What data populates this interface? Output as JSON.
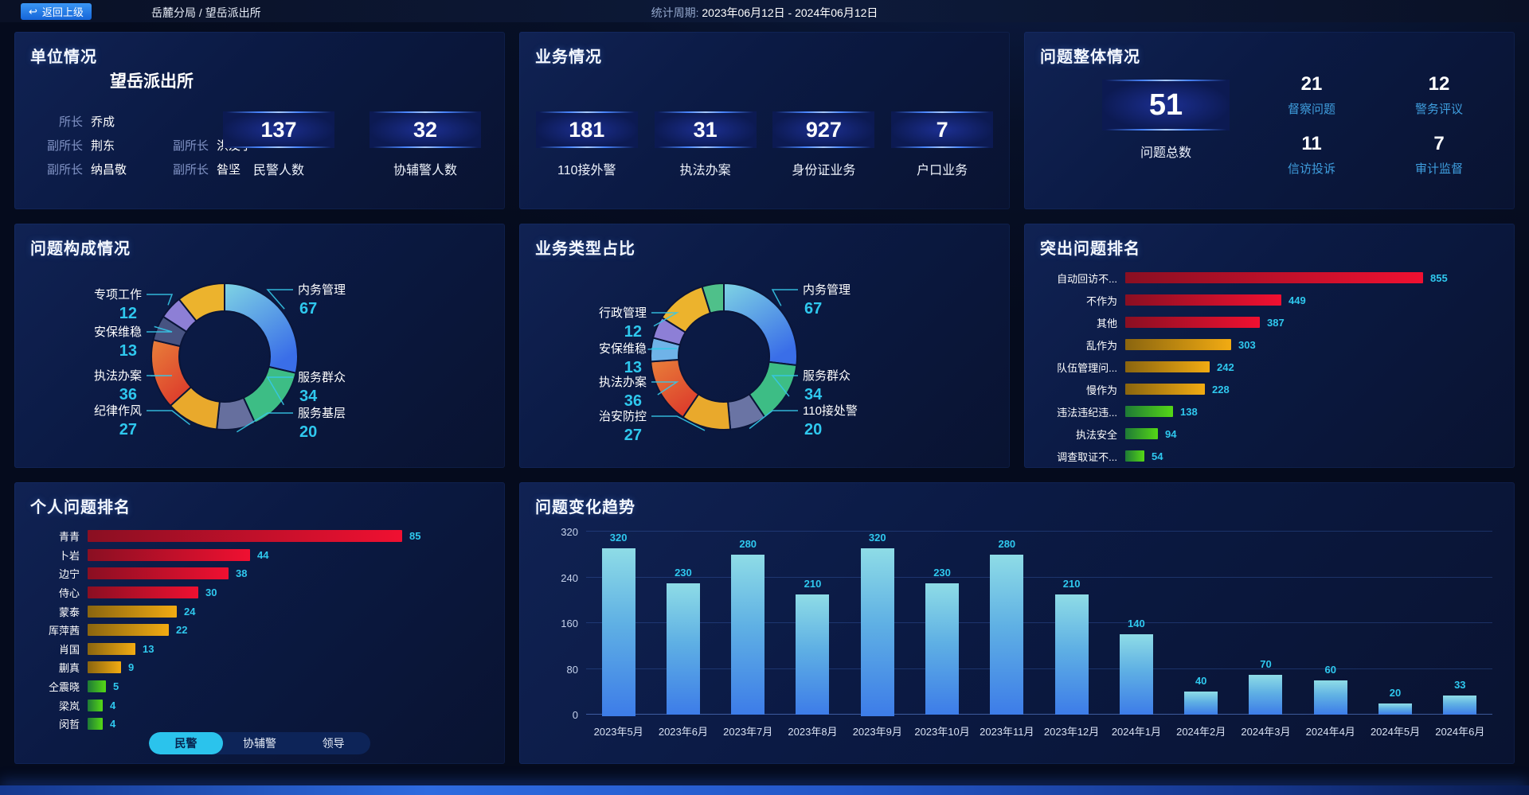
{
  "topbar": {
    "back_button": "返回上级",
    "breadcrumb": "岳麓分局 / 望岳派出所",
    "period_label": "统计周期: ",
    "period_value": "2023年06月12日 - 2024年06月12日"
  },
  "unit_panel": {
    "title": "单位情况",
    "station_name": "望岳派出所",
    "leader_rows": [
      [
        {
          "role": "所长",
          "name": "乔成"
        }
      ],
      [
        {
          "role": "副所长",
          "name": "荆东"
        },
        {
          "role": "副所长",
          "name": "洪友宁"
        }
      ],
      [
        {
          "role": "副所长",
          "name": "纳昌敬"
        },
        {
          "role": "副所长",
          "name": "昝坚"
        }
      ]
    ],
    "stats": [
      {
        "value": "137",
        "label": "民警人数"
      },
      {
        "value": "32",
        "label": "协辅警人数"
      }
    ]
  },
  "business_panel": {
    "title": "业务情况",
    "stats": [
      {
        "value": "181",
        "label": "110接外警"
      },
      {
        "value": "31",
        "label": "执法办案"
      },
      {
        "value": "927",
        "label": "身份证业务"
      },
      {
        "value": "7",
        "label": "户口业务"
      }
    ]
  },
  "problem_panel": {
    "title": "问题整体情况",
    "total": {
      "value": "51",
      "label": "问题总数"
    },
    "stats": [
      {
        "value": "21",
        "label": "督察问题"
      },
      {
        "value": "12",
        "label": "警务评议"
      },
      {
        "value": "11",
        "label": "信访投诉"
      },
      {
        "value": "7",
        "label": "审计监督"
      }
    ]
  },
  "personal_tabs": [
    {
      "label": "民警",
      "active": true
    },
    {
      "label": "协辅警",
      "active": false
    },
    {
      "label": "领导",
      "active": false
    }
  ],
  "colors": {
    "value_text": "#2fc8ee",
    "stat_label_blue": "#3f9ede",
    "leader_line": "#35c8e8",
    "bar_red": [
      "#8a0f22",
      "#f01031"
    ],
    "bar_yellow": [
      "#8a650f",
      "#f2ab12"
    ],
    "bar_green": [
      "#1e7a36",
      "#55d816"
    ],
    "trend_bar": [
      "#8edce6",
      "#5fb0e4",
      "#3d7ce8"
    ],
    "back_button_blue": "#2186f0",
    "tab_active": "#2bc3ec"
  },
  "chart_data": [
    {
      "id": "problem_composition",
      "type": "donut",
      "title": "问题构成情况",
      "segments": [
        {
          "label": "内务管理",
          "value": 67,
          "color": "#7fd4e4",
          "color2": "#3a6ee8"
        },
        {
          "label": "服务群众",
          "value": 34,
          "color": "#3dbd85"
        },
        {
          "label": "服务基层",
          "value": 20,
          "color": "#666f9e"
        },
        {
          "label": "纪律作风",
          "value": 27,
          "color": "#e9a92c"
        },
        {
          "label": "执法办案",
          "value": 36,
          "color": "#e8803a",
          "color2": "#dd3e2c"
        },
        {
          "label": "安保维稳",
          "value": 13,
          "color": "#475381"
        },
        {
          "label": "专项工作",
          "value": 12,
          "color": "#8d7fd6"
        },
        {
          "label": "",
          "value": 25,
          "color": "#ecb32d"
        }
      ]
    },
    {
      "id": "business_type_share",
      "type": "donut",
      "title": "业务类型占比",
      "segments": [
        {
          "label": "内务管理",
          "value": 67,
          "color": "#7fd4e4",
          "color2": "#3a6ee8"
        },
        {
          "label": "服务群众",
          "value": 34,
          "color": "#3dbd85"
        },
        {
          "label": "110接处警",
          "value": 20,
          "color": "#6a74a4"
        },
        {
          "label": "治安防控",
          "value": 27,
          "color": "#e9a92c"
        },
        {
          "label": "执法办案",
          "value": 36,
          "color": "#e8803a",
          "color2": "#dd3e2c"
        },
        {
          "label": "安保维稳",
          "value": 13,
          "color": "#6fb3e8"
        },
        {
          "label": "行政管理",
          "value": 12,
          "color": "#8d7fd6"
        },
        {
          "label": "",
          "value": 28,
          "color": "#ecb32d"
        },
        {
          "label": "",
          "value": 12,
          "color": "#4fc08a"
        }
      ]
    },
    {
      "id": "outstanding_problems",
      "type": "bar-horizontal",
      "title": "突出问题排名",
      "categories": [
        "自动回访不...",
        "不作为",
        "其他",
        "乱作为",
        "队伍管理问...",
        "慢作为",
        "违法违纪违...",
        "执法安全",
        "调查取证不..."
      ],
      "values": [
        855,
        449,
        387,
        303,
        242,
        228,
        138,
        94,
        54
      ],
      "bar_colors": [
        "red",
        "red",
        "red",
        "yellow",
        "yellow",
        "yellow",
        "green",
        "green",
        "green"
      ],
      "xmax": 855
    },
    {
      "id": "personal_problems",
      "type": "bar-horizontal",
      "title": "个人问题排名",
      "categories": [
        "青青",
        "卜岩",
        "边宁",
        "侍心",
        "蒙泰",
        "厍萍茜",
        "肖国",
        "蒯真",
        "仝震晓",
        "梁岚",
        "闵哲"
      ],
      "values": [
        85,
        44,
        38,
        30,
        24,
        22,
        13,
        9,
        5,
        4,
        4
      ],
      "bar_colors": [
        "red",
        "red",
        "red",
        "red",
        "yellow",
        "yellow",
        "yellow",
        "yellow",
        "green",
        "green",
        "green"
      ],
      "xmax": 85
    },
    {
      "id": "problem_trend",
      "type": "bar",
      "title": "问题变化趋势",
      "categories": [
        "2023年5月",
        "2023年6月",
        "2023年7月",
        "2023年8月",
        "2023年9月",
        "2023年10月",
        "2023年11月",
        "2023年12月",
        "2024年1月",
        "2024年2月",
        "2024年3月",
        "2024年4月",
        "2024年5月",
        "2024年6月"
      ],
      "values": [
        320,
        230,
        280,
        210,
        320,
        230,
        280,
        210,
        140,
        40,
        70,
        60,
        20,
        33
      ],
      "yticks": [
        0,
        80,
        160,
        240,
        320
      ],
      "ylim": [
        0,
        320
      ],
      "grid": true,
      "legend": false
    }
  ]
}
